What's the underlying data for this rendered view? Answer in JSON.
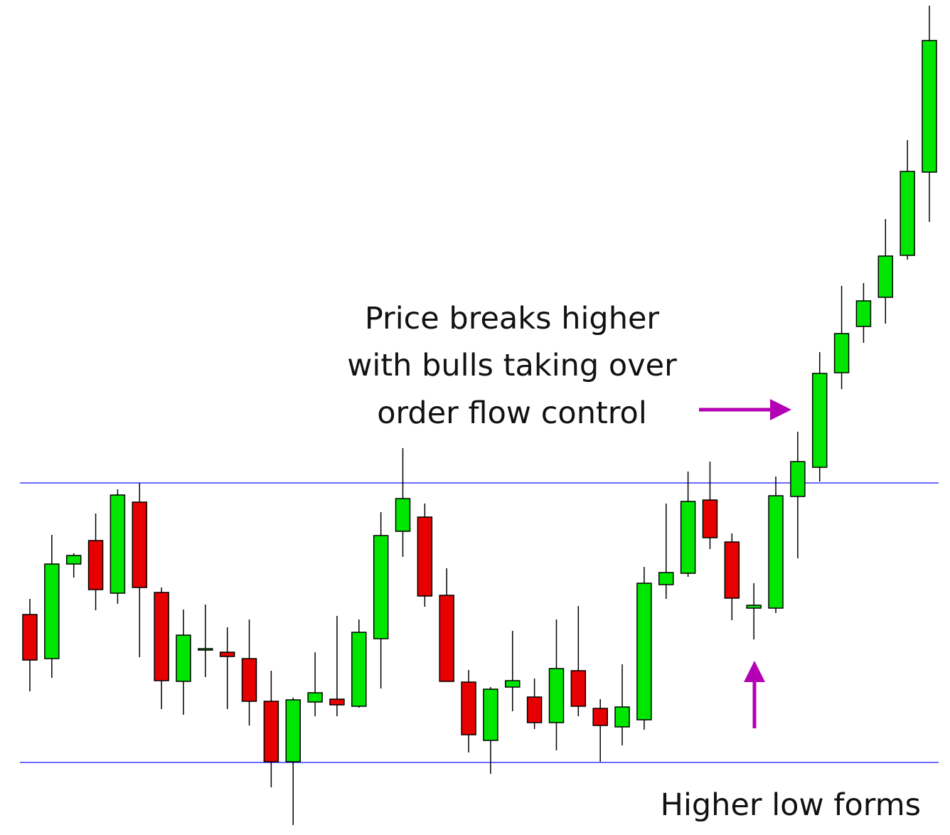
{
  "chart_data": {
    "type": "candlestick",
    "annotations": [
      "Price breaks higher",
      "with bulls taking over",
      "order flow control",
      "Higher low forms"
    ],
    "ylim": [
      0,
      1170
    ],
    "levels": [
      491,
      98
    ],
    "level_color": "#3a3aff",
    "up_color": "#00e600",
    "down_color": "#e60000",
    "open": [
      306,
      244,
      377,
      410,
      336,
      464,
      337,
      212,
      256,
      253,
      244,
      184,
      99,
      183,
      187,
      177,
      272,
      423,
      443,
      333,
      211,
      129,
      204,
      190,
      154,
      227,
      174,
      148,
      158,
      348,
      364,
      467,
      408,
      315,
      315,
      472,
      513,
      646,
      711,
      752,
      811,
      928
    ],
    "high": [
      328,
      418,
      392,
      448,
      482,
      491,
      344,
      313,
      320,
      288,
      299,
      227,
      189,
      253,
      304,
      299,
      450,
      540,
      462,
      371,
      228,
      204,
      283,
      216,
      299,
      318,
      187,
      236,
      373,
      462,
      507,
      521,
      420,
      350,
      500,
      563,
      675,
      768,
      772,
      862,
      973,
      1162
    ],
    "low": [
      198,
      217,
      358,
      312,
      321,
      246,
      173,
      165,
      218,
      173,
      150,
      63,
      10,
      163,
      163,
      175,
      202,
      387,
      317,
      212,
      112,
      82,
      170,
      145,
      115,
      163,
      99,
      122,
      144,
      328,
      359,
      398,
      298,
      271,
      308,
      385,
      493,
      623,
      688,
      715,
      805,
      858
    ],
    "close": [
      242,
      377,
      389,
      341,
      474,
      344,
      213,
      277,
      258,
      247,
      184,
      99,
      186,
      196,
      179,
      281,
      417,
      469,
      332,
      212,
      137,
      201,
      213,
      154,
      230,
      177,
      150,
      176,
      350,
      365,
      465,
      414,
      329,
      319,
      473,
      521,
      645,
      701,
      747,
      810,
      929,
      1113
    ]
  }
}
